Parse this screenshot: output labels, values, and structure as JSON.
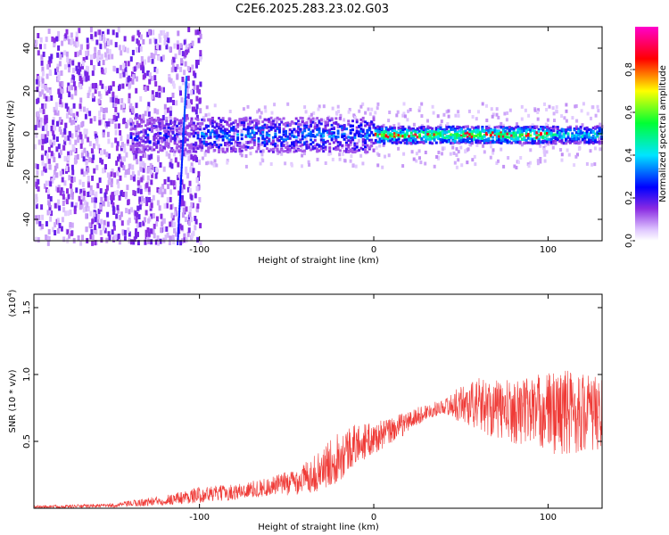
{
  "title": "C2E6.2025.283.23.02.G03",
  "chart_data": [
    {
      "type": "heatmap",
      "xlabel": "Height of straight line (km)",
      "ylabel": "Frequency (Hz)",
      "xlim": [
        -195,
        131
      ],
      "ylim": [
        -50,
        50
      ],
      "xticks": [
        -100,
        0,
        100
      ],
      "xtick_labels": [
        "-100",
        "0",
        "100"
      ],
      "yticks": [
        -40,
        -20,
        0,
        20,
        40
      ],
      "ytick_labels": [
        "-40",
        "-20",
        "0",
        "20",
        "40"
      ],
      "colorbar": {
        "label": "Normalized spectral amplitude",
        "range": [
          0,
          1
        ],
        "ticks": [
          0.0,
          0.2,
          0.4,
          0.6,
          0.8
        ],
        "tick_labels": [
          "0.0",
          "0.2",
          "0.4",
          "0.6",
          "0.8"
        ]
      },
      "features": {
        "noise_region_x": [
          -195,
          -100
        ],
        "signal_band_center_hz": 0,
        "signal_band_halfwidth_hz": [
          8,
          4
        ],
        "peak_amplitude_region_x": [
          0,
          100
        ],
        "chirp_line": {
          "x": [
            -113,
            -108
          ],
          "y": [
            -50,
            27
          ]
        }
      }
    },
    {
      "type": "line",
      "xlabel": "Height of straight line (km)",
      "ylabel": "SNR (10 * v/v)",
      "y_multiplier_label": "(x10",
      "y_multiplier_exp": "4",
      "xlim": [
        -195,
        131
      ],
      "ylim": [
        0,
        1.6
      ],
      "xticks": [
        -100,
        0,
        100
      ],
      "xtick_labels": [
        "-100",
        "0",
        "100"
      ],
      "yticks": [
        0.5,
        1.0,
        1.5
      ],
      "ytick_labels": [
        "0.5",
        "1.0",
        "1.5"
      ],
      "series": [
        {
          "name": "SNR",
          "color": "#ef3a36",
          "envelope_x": [
            -195,
            -150,
            -120,
            -100,
            -80,
            -60,
            -45,
            -30,
            -20,
            -10,
            0,
            10,
            20,
            30,
            40,
            50,
            60,
            70,
            80,
            90,
            100,
            110,
            120,
            131
          ],
          "envelope_mean": [
            0.01,
            0.02,
            0.06,
            0.1,
            0.12,
            0.16,
            0.2,
            0.28,
            0.4,
            0.48,
            0.52,
            0.58,
            0.65,
            0.72,
            0.76,
            0.78,
            0.78,
            0.74,
            0.72,
            0.74,
            0.72,
            0.72,
            0.72,
            0.7
          ],
          "envelope_spread": [
            0.01,
            0.015,
            0.04,
            0.06,
            0.06,
            0.07,
            0.1,
            0.15,
            0.2,
            0.15,
            0.12,
            0.1,
            0.08,
            0.06,
            0.05,
            0.14,
            0.2,
            0.22,
            0.24,
            0.26,
            0.3,
            0.34,
            0.3,
            0.28
          ]
        }
      ]
    }
  ]
}
